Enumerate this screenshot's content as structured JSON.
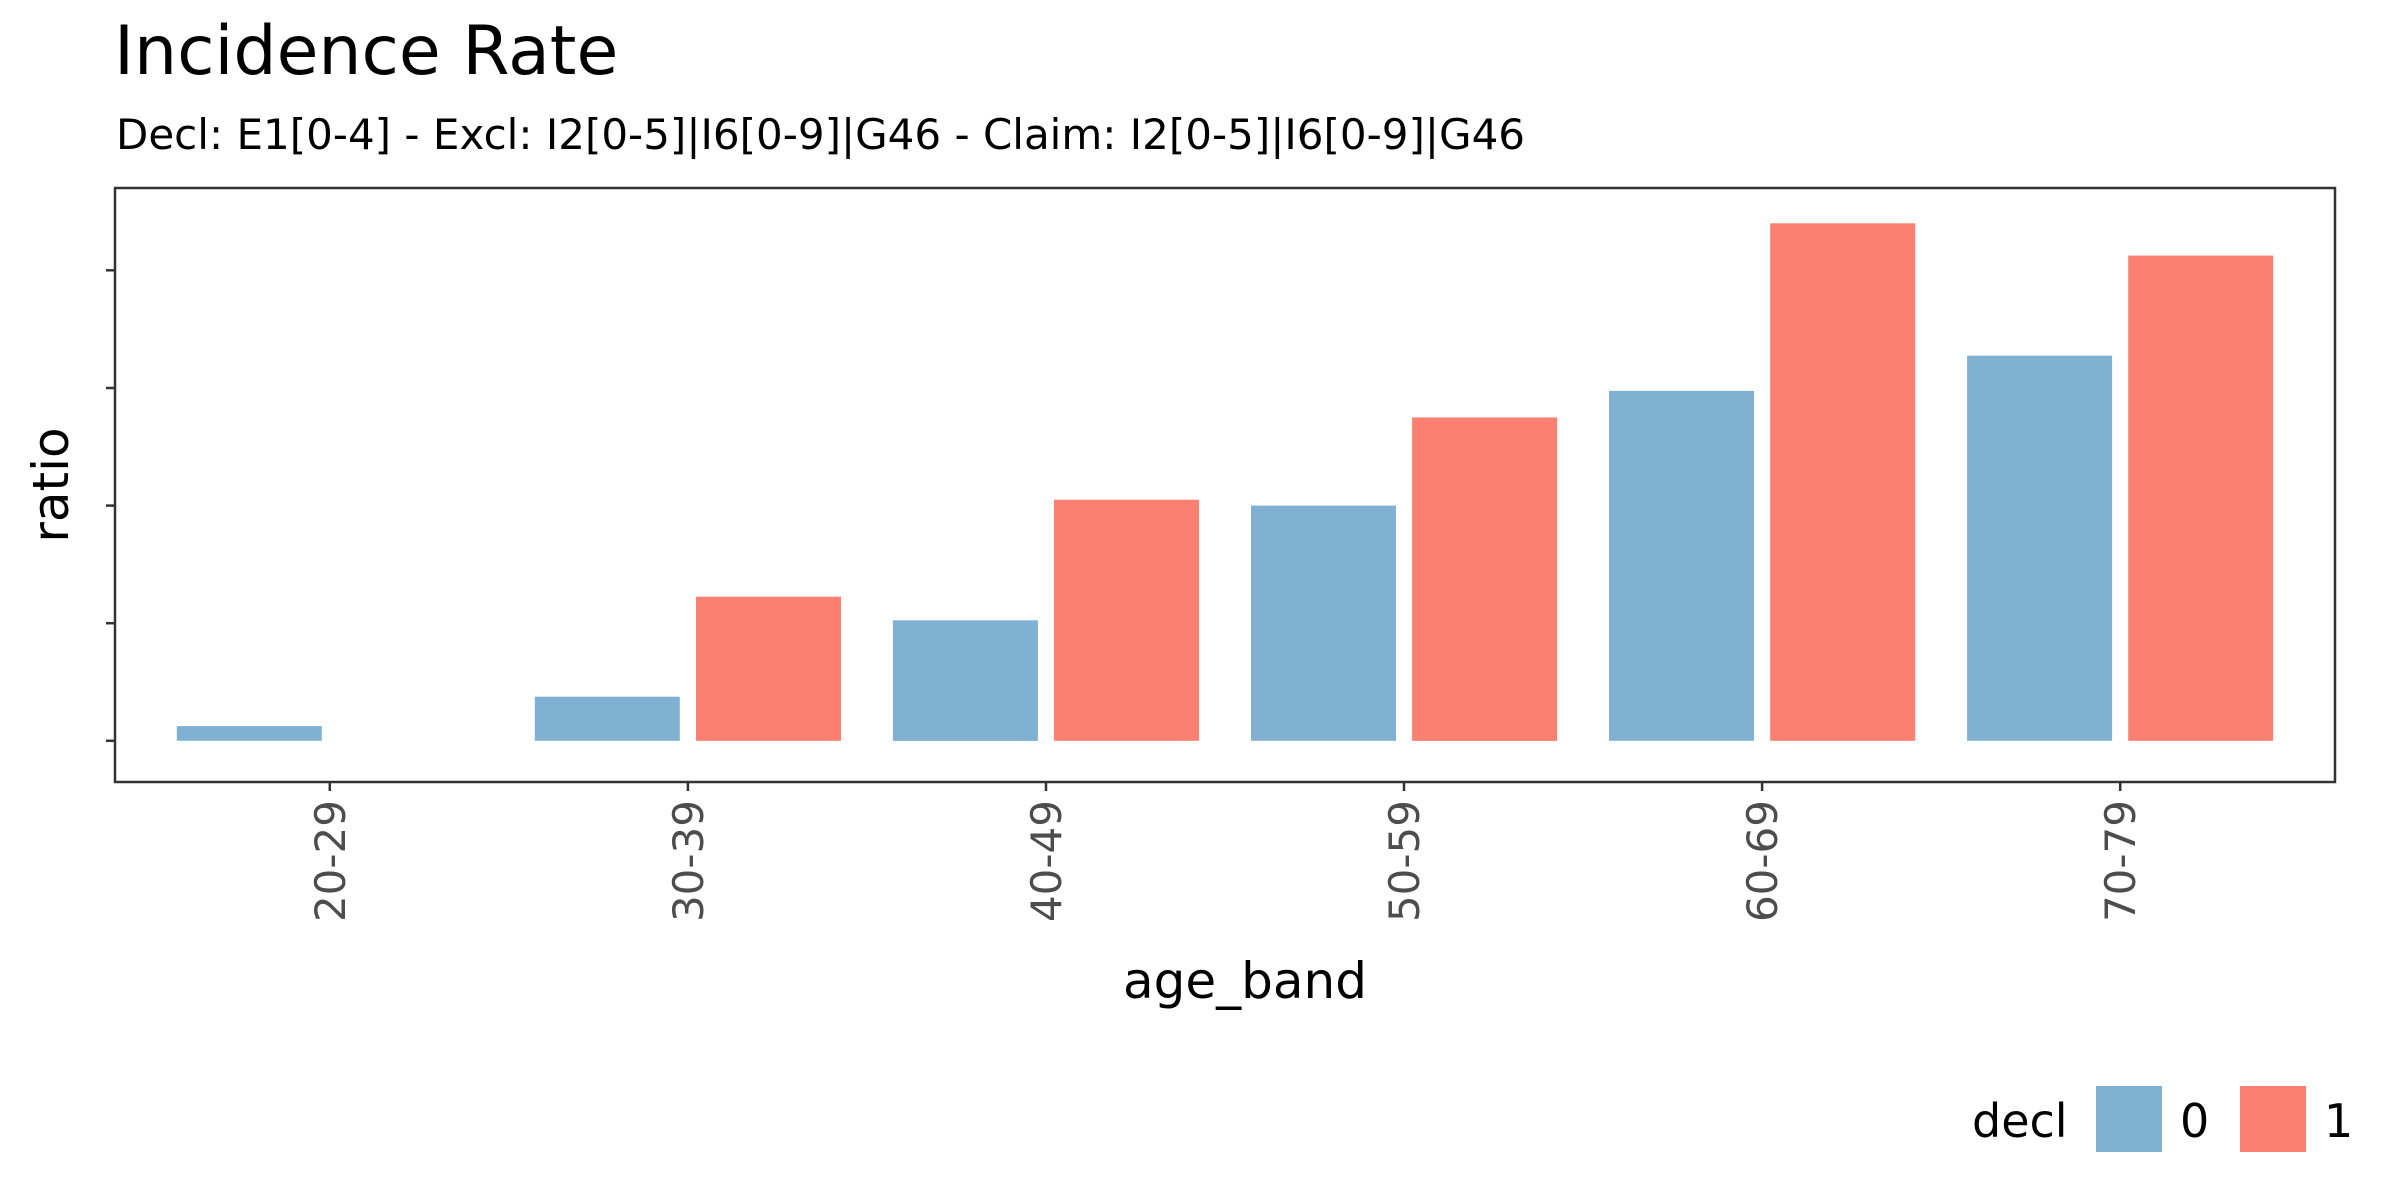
{
  "chart_data": {
    "type": "bar",
    "title": "Incidence Rate",
    "subtitle": "Decl: E1[0-4] - Excl: I2[0-5]|I6[0-9]|G46 - Claim: I2[0-5]|I6[0-9]|G46",
    "xlabel": "age_band",
    "ylabel": "ratio",
    "categories": [
      "20-29",
      "30-39",
      "40-49",
      "50-59",
      "60-69",
      "70-79"
    ],
    "series": [
      {
        "name": "0",
        "color": "#80B1D3",
        "values": [
          0.25,
          0.75,
          2.05,
          4.0,
          5.95,
          6.55
        ]
      },
      {
        "name": "1",
        "color": "#FB8072",
        "values": [
          null,
          2.45,
          4.1,
          5.5,
          8.8,
          8.25
        ]
      }
    ],
    "ylim": [
      -0.7,
      9.4
    ],
    "y_ticks": [
      0,
      2,
      4,
      6,
      8
    ],
    "y_tick_labels_shown": false,
    "grid": false,
    "legend": {
      "title": "decl",
      "position": "bottom-right",
      "entries": [
        "0",
        "1"
      ]
    }
  }
}
